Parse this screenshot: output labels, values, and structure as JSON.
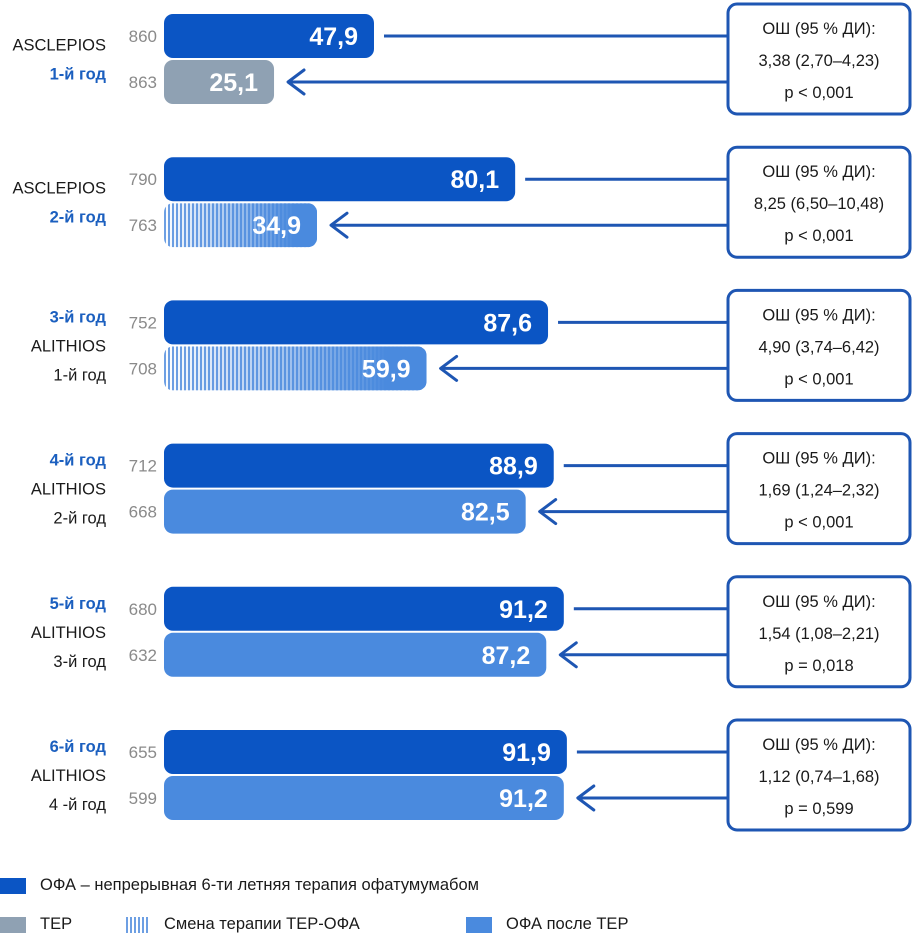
{
  "chart_data": {
    "type": "bar",
    "orientation": "horizontal",
    "unit": "%",
    "xlim": [
      0,
      100
    ],
    "groups": [
      {
        "label_lines": [
          {
            "text": "ASCLEPIOS",
            "style": "black"
          },
          {
            "text": "1-й год",
            "style": "blue"
          }
        ],
        "top": {
          "n": "860",
          "value": 47.9,
          "label": "47,9",
          "series": "ofa"
        },
        "bottom": {
          "n": "863",
          "value": 25.1,
          "label": "25,1",
          "series": "ter"
        },
        "or": [
          "ОШ (95 % ДИ):",
          "3,38 (2,70–4,23)",
          "p < 0,001"
        ]
      },
      {
        "label_lines": [
          {
            "text": "ASCLEPIOS",
            "style": "black"
          },
          {
            "text": "2-й год",
            "style": "blue"
          }
        ],
        "top": {
          "n": "790",
          "value": 80.1,
          "label": "80,1",
          "series": "ofa"
        },
        "bottom": {
          "n": "763",
          "value": 34.9,
          "label": "34,9",
          "series": "switch"
        },
        "or": [
          "ОШ (95 % ДИ):",
          "8,25 (6,50–10,48)",
          "p < 0,001"
        ]
      },
      {
        "label_lines": [
          {
            "text": "3-й год",
            "style": "blue"
          },
          {
            "text": "ALITHIOS",
            "style": "black"
          },
          {
            "text": "1-й год",
            "style": "black"
          }
        ],
        "top": {
          "n": "752",
          "value": 87.6,
          "label": "87,6",
          "series": "ofa"
        },
        "bottom": {
          "n": "708",
          "value": 59.9,
          "label": "59,9",
          "series": "switch"
        },
        "or": [
          "ОШ (95 % ДИ):",
          "4,90 (3,74–6,42)",
          "p < 0,001"
        ]
      },
      {
        "label_lines": [
          {
            "text": "4-й год",
            "style": "blue"
          },
          {
            "text": "ALITHIOS",
            "style": "black"
          },
          {
            "text": "2-й год",
            "style": "black"
          }
        ],
        "top": {
          "n": "712",
          "value": 88.9,
          "label": "88,9",
          "series": "ofa"
        },
        "bottom": {
          "n": "668",
          "value": 82.5,
          "label": "82,5",
          "series": "ofa_after_ter"
        },
        "or": [
          "ОШ (95 % ДИ):",
          "1,69 (1,24–2,32)",
          "p < 0,001"
        ]
      },
      {
        "label_lines": [
          {
            "text": "5-й год",
            "style": "blue"
          },
          {
            "text": "ALITHIOS",
            "style": "black"
          },
          {
            "text": "3-й год",
            "style": "black"
          }
        ],
        "top": {
          "n": "680",
          "value": 91.2,
          "label": "91,2",
          "series": "ofa"
        },
        "bottom": {
          "n": "632",
          "value": 87.2,
          "label": "87,2",
          "series": "ofa_after_ter"
        },
        "or": [
          "ОШ (95 % ДИ):",
          "1,54 (1,08–2,21)",
          "p = 0,018"
        ]
      },
      {
        "label_lines": [
          {
            "text": "6-й год",
            "style": "blue"
          },
          {
            "text": "ALITHIOS",
            "style": "black"
          },
          {
            "text": "4 -й год",
            "style": "black"
          }
        ],
        "top": {
          "n": "655",
          "value": 91.9,
          "label": "91,9",
          "series": "ofa"
        },
        "bottom": {
          "n": "599",
          "value": 91.2,
          "label": "91,2",
          "series": "ofa_after_ter"
        },
        "or": [
          "ОШ (95 % ДИ):",
          "1,12 (0,74–1,68)",
          "p = 0,599"
        ]
      }
    ]
  },
  "colors": {
    "ofa": "#0b55c4",
    "ter": "#8fa1b3",
    "ofa_after_ter": "#4a8ade",
    "switch_stripe": "#a9c8ef",
    "arrow": "#1e56b3",
    "box_border": "#1e56b3",
    "group_blue": "#1b5fbf"
  },
  "legend": {
    "ofa": "ОФА – непрерывная 6-ти летняя терапия офатумумабом",
    "ter": "TEP",
    "switch": "Смена терапии TEP-ОФА",
    "ofa_after_ter": "ОФА после TEP"
  }
}
